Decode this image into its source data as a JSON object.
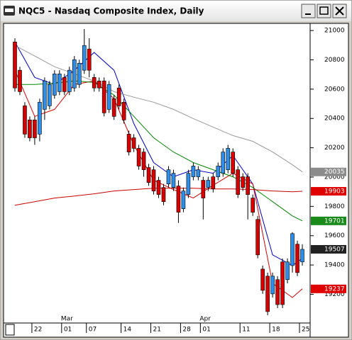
{
  "chart_data": {
    "type": "candlestick",
    "title": "NQC5 - Nasdaq Composite Index, Daily",
    "categories": [
      null,
      null,
      null,
      null,
      "22",
      null,
      null,
      null,
      null,
      null,
      "01",
      null,
      null,
      null,
      null,
      "07",
      null,
      null,
      null,
      null,
      null,
      null,
      "14",
      null,
      null,
      null,
      null,
      null,
      "21",
      null,
      null,
      null,
      null,
      null,
      "28",
      null,
      null,
      null,
      "01",
      null,
      null,
      null,
      null,
      null,
      null,
      null,
      "11",
      null,
      null,
      null,
      null,
      null,
      "18",
      null,
      null,
      null,
      null,
      null,
      "25"
    ],
    "months": [
      null,
      null,
      null,
      null,
      null,
      null,
      null,
      null,
      null,
      null,
      "Mar",
      null,
      null,
      null,
      null,
      null,
      null,
      null,
      null,
      null,
      null,
      null,
      null,
      null,
      null,
      null,
      null,
      null,
      null,
      null,
      null,
      null,
      null,
      null,
      null,
      null,
      null,
      null,
      "Apr",
      null,
      null,
      null,
      null,
      null,
      null,
      null,
      null,
      null,
      null,
      null,
      null,
      null,
      null,
      null,
      null,
      null,
      null,
      null,
      null
    ],
    "open": [
      20922,
      20729,
      20486,
      20390,
      20390,
      20293,
      20462,
      20486,
      20559,
      20583,
      20680,
      20583,
      20608,
      20632,
      20729,
      20874,
      20680,
      20656,
      20656,
      20462,
      20535,
      20608,
      20511,
      20293,
      20268,
      20196,
      20171,
      20065,
      20050,
      19978,
      19929,
      19953,
      19929,
      19939,
      19784,
      19881,
      20002,
      20002,
      19978,
      19929,
      20002,
      20002,
      20026,
      20050,
      20171,
      20050,
      20002,
      20002,
      19857,
      19711,
      19372,
      19324,
      19203,
      19300,
      19421,
      19300,
      19396,
      19542,
      19421
    ],
    "high": [
      20947,
      20753,
      20511,
      20414,
      20414,
      20535,
      20680,
      20656,
      20729,
      20729,
      20704,
      20753,
      20826,
      20801,
      21010,
      20947,
      20704,
      20680,
      20680,
      20656,
      20559,
      20632,
      20535,
      20317,
      20293,
      20220,
      20196,
      20090,
      20075,
      20002,
      19953,
      20075,
      20050,
      19978,
      19929,
      20050,
      20099,
      20075,
      20002,
      20002,
      20026,
      20099,
      20196,
      20220,
      20196,
      20075,
      20026,
      20026,
      19881,
      19735,
      19396,
      19348,
      19348,
      19324,
      19445,
      19445,
      19624,
      19566,
      19542
    ],
    "low": [
      20583,
      20559,
      20268,
      20244,
      20220,
      20244,
      20390,
      20462,
      20535,
      20559,
      20559,
      20559,
      20583,
      20608,
      20704,
      20680,
      20583,
      20583,
      20414,
      20438,
      20390,
      20462,
      20365,
      20147,
      20171,
      20050,
      20002,
      19940,
      19881,
      19857,
      19808,
      19929,
      19905,
      19687,
      19760,
      19857,
      19978,
      19978,
      19711,
      19905,
      19895,
      19978,
      20002,
      20026,
      20002,
      19857,
      19905,
      19711,
      19735,
      19445,
      19203,
      19057,
      19178,
      19106,
      19106,
      19275,
      19348,
      19324,
      19396
    ],
    "close": [
      20608,
      20583,
      20293,
      20268,
      20268,
      20511,
      20656,
      20632,
      20704,
      20704,
      20583,
      20729,
      20801,
      20777,
      20898,
      20729,
      20608,
      20608,
      20438,
      20632,
      20414,
      20486,
      20390,
      20171,
      20196,
      20075,
      20050,
      19963,
      19905,
      19881,
      19832,
      20050,
      20026,
      19760,
      19905,
      20026,
      20075,
      20050,
      19857,
      19978,
      19919,
      20075,
      20171,
      20196,
      20026,
      19881,
      19929,
      19881,
      19760,
      19469,
      19227,
      19082,
      19324,
      19130,
      19130,
      19421,
      19614,
      19348,
      19507
    ],
    "up_color": "#2f8fe8",
    "down_color": "#d80000",
    "overlays": [
      {
        "color": "#0000cc",
        "x": [
          0,
          4,
          8,
          12,
          16,
          20,
          24,
          28,
          32,
          36,
          40,
          44,
          48,
          52,
          56,
          58
        ],
        "values": [
          20922,
          20680,
          20632,
          20729,
          20850,
          20729,
          20365,
          20099,
          20002,
          20050,
          20026,
          20147,
          19953,
          19469,
          19396,
          19445
        ]
      },
      {
        "color": "#dd0000",
        "x": [
          0,
          4,
          8,
          12,
          16,
          20,
          24,
          28,
          32,
          36,
          40,
          44,
          48,
          52,
          56,
          58
        ],
        "values": [
          20729,
          20414,
          20462,
          20632,
          20656,
          20535,
          20220,
          19978,
          19915,
          19857,
          19944,
          20026,
          19953,
          19275,
          19178,
          19237
        ],
        "label_color": "#e00000"
      },
      {
        "color": "#008800",
        "x": [
          0,
          4,
          8,
          12,
          16,
          20,
          24,
          28,
          32,
          36,
          40,
          44,
          48,
          52,
          56,
          58
        ],
        "values": [
          20632,
          20632,
          20641,
          20656,
          20646,
          20559,
          20414,
          20268,
          20171,
          20099,
          20050,
          20002,
          19929,
          19832,
          19735,
          19701
        ],
        "label_color": "#1a8a1a"
      },
      {
        "color": "#999999",
        "x": [
          0,
          4,
          8,
          12,
          16,
          20,
          24,
          28,
          32,
          36,
          40,
          44,
          48,
          52,
          56,
          58
        ],
        "values": [
          20898,
          20826,
          20753,
          20704,
          20656,
          20583,
          20545,
          20511,
          20462,
          20399,
          20341,
          20283,
          20244,
          20171,
          20084,
          20035
        ],
        "label_color": "#8c8c8c"
      },
      {
        "color": "#cc0000",
        "x": [
          0,
          4,
          8,
          12,
          16,
          20,
          24,
          28,
          32,
          36,
          40,
          44,
          48,
          52,
          56,
          58
        ],
        "values": [
          19808,
          19832,
          19857,
          19871,
          19886,
          19905,
          19915,
          19924,
          19924,
          19924,
          19919,
          19919,
          19915,
          19905,
          19900,
          19903
        ],
        "label_color": "#e00000"
      }
    ],
    "last_label_color": "#222222",
    "ylim": [
      19009,
      21044
    ],
    "yticks": [
      19200,
      19400,
      19600,
      19800,
      20000,
      20200,
      20400,
      20600,
      20800,
      21000
    ]
  }
}
